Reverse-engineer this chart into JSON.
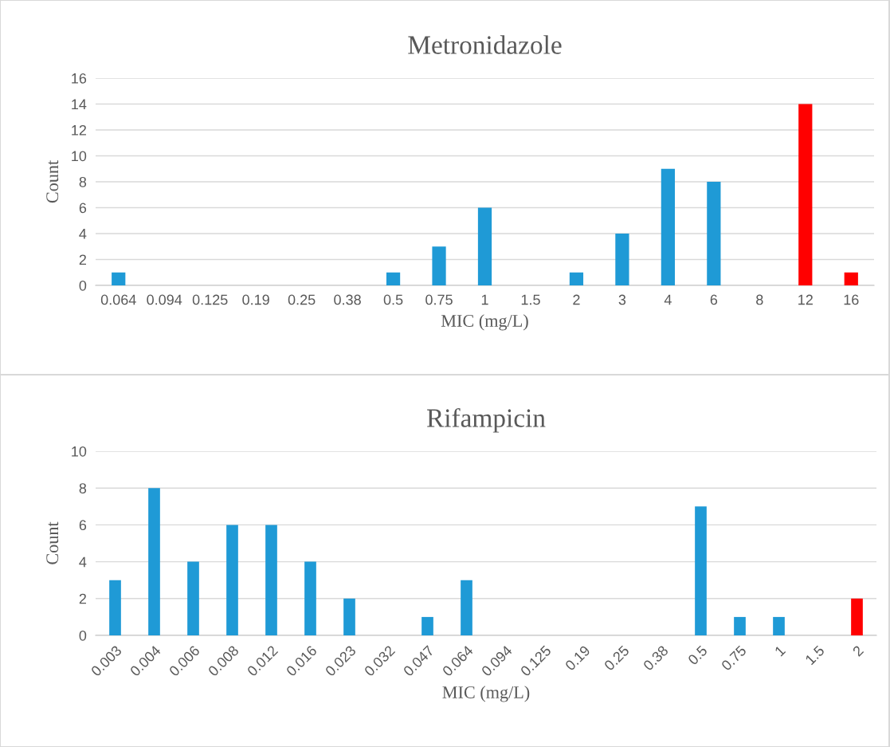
{
  "chart_data": [
    {
      "type": "bar",
      "title": "Metronidazole",
      "xlabel": "MIC (mg/L)",
      "ylabel": "Count",
      "categories": [
        "0.064",
        "0.094",
        "0.125",
        "0.19",
        "0.25",
        "0.38",
        "0.5",
        "0.75",
        "1",
        "1.5",
        "2",
        "3",
        "4",
        "6",
        "8",
        "12",
        "16"
      ],
      "values": [
        1,
        0,
        0,
        0,
        0,
        0,
        1,
        3,
        6,
        0,
        1,
        4,
        9,
        8,
        0,
        14,
        1
      ],
      "colors": [
        "#1f9ad6",
        "#1f9ad6",
        "#1f9ad6",
        "#1f9ad6",
        "#1f9ad6",
        "#1f9ad6",
        "#1f9ad6",
        "#1f9ad6",
        "#1f9ad6",
        "#1f9ad6",
        "#1f9ad6",
        "#1f9ad6",
        "#1f9ad6",
        "#1f9ad6",
        "#1f9ad6",
        "#ff0000",
        "#ff0000"
      ],
      "ylim": [
        0,
        16
      ],
      "yticks": [
        0,
        2,
        4,
        6,
        8,
        10,
        12,
        14,
        16
      ],
      "grid": "y"
    },
    {
      "type": "bar",
      "title": "Rifampicin",
      "xlabel": "MIC (mg/L)",
      "ylabel": "Count",
      "categories": [
        "0.003",
        "0.004",
        "0.006",
        "0.008",
        "0.012",
        "0.016",
        "0.023",
        "0.032",
        "0.047",
        "0.064",
        "0.094",
        "0.125",
        "0.19",
        "0.25",
        "0.38",
        "0.5",
        "0.75",
        "1",
        "1.5",
        "2"
      ],
      "values": [
        3,
        8,
        4,
        6,
        6,
        4,
        2,
        0,
        1,
        3,
        0,
        0,
        0,
        0,
        0,
        7,
        1,
        1,
        0,
        2
      ],
      "colors": [
        "#1f9ad6",
        "#1f9ad6",
        "#1f9ad6",
        "#1f9ad6",
        "#1f9ad6",
        "#1f9ad6",
        "#1f9ad6",
        "#1f9ad6",
        "#1f9ad6",
        "#1f9ad6",
        "#1f9ad6",
        "#1f9ad6",
        "#1f9ad6",
        "#1f9ad6",
        "#1f9ad6",
        "#1f9ad6",
        "#1f9ad6",
        "#1f9ad6",
        "#1f9ad6",
        "#ff0000"
      ],
      "ylim": [
        0,
        10
      ],
      "yticks": [
        0,
        2,
        4,
        6,
        8,
        10
      ],
      "grid": "y"
    }
  ]
}
